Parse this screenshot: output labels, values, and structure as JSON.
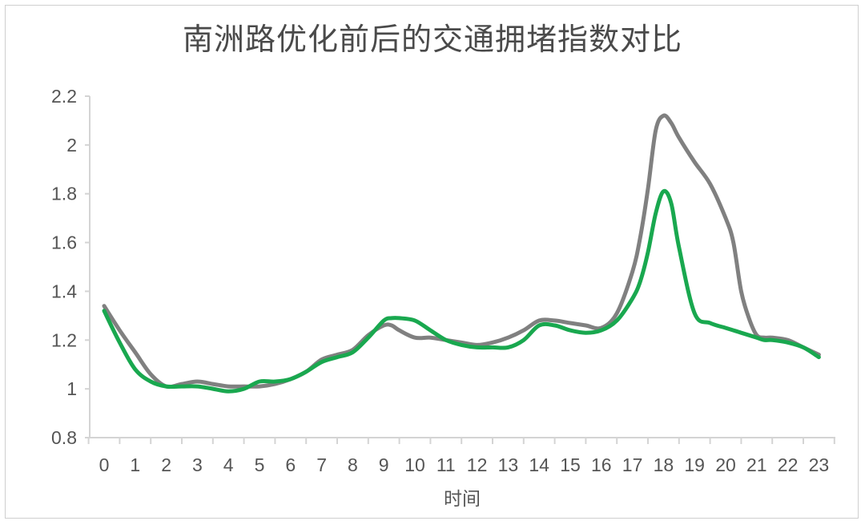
{
  "chart_data": {
    "type": "line",
    "title": "南洲路优化前后的交通拥堵指数对比",
    "xlabel": "时间",
    "ylabel": "",
    "ylim": [
      0.8,
      2.2
    ],
    "yticks": [
      "0.8",
      "1",
      "1.2",
      "1.4",
      "1.6",
      "1.8",
      "2",
      "2.2"
    ],
    "xticks": [
      "0",
      "1",
      "2",
      "3",
      "4",
      "5",
      "6",
      "7",
      "8",
      "9",
      "10",
      "11",
      "12",
      "13",
      "14",
      "15",
      "16",
      "17",
      "18",
      "19",
      "20",
      "21",
      "22",
      "23"
    ],
    "grid": false,
    "legend": "none",
    "series": [
      {
        "color": "#808080",
        "x": [
          0,
          0.5,
          1,
          1.5,
          2,
          2.5,
          3,
          3.5,
          4,
          4.5,
          5,
          5.5,
          6,
          6.5,
          7,
          7.5,
          8,
          8.5,
          9,
          9.25,
          9.5,
          10,
          10.5,
          11,
          11.5,
          12,
          12.5,
          13,
          13.5,
          14,
          14.5,
          15,
          15.5,
          16,
          16.5,
          17,
          17.25,
          17.5,
          17.75,
          18,
          18.25,
          18.5,
          19,
          19.5,
          20,
          20.25,
          20.5,
          20.75,
          21,
          21.25,
          21.5,
          22,
          22.5,
          23
        ],
        "y": [
          1.34,
          1.24,
          1.15,
          1.06,
          1.01,
          1.02,
          1.03,
          1.02,
          1.01,
          1.01,
          1.01,
          1.02,
          1.04,
          1.07,
          1.12,
          1.14,
          1.16,
          1.22,
          1.26,
          1.26,
          1.24,
          1.21,
          1.21,
          1.2,
          1.19,
          1.18,
          1.19,
          1.21,
          1.24,
          1.28,
          1.28,
          1.27,
          1.26,
          1.25,
          1.31,
          1.48,
          1.62,
          1.82,
          2.06,
          2.12,
          2.09,
          2.03,
          1.93,
          1.84,
          1.7,
          1.6,
          1.4,
          1.29,
          1.22,
          1.21,
          1.21,
          1.2,
          1.17,
          1.14
        ]
      },
      {
        "color": "#19a84f",
        "x": [
          0,
          0.5,
          1,
          1.5,
          2,
          2.5,
          3,
          3.5,
          4,
          4.5,
          5,
          5.5,
          6,
          6.5,
          7,
          7.5,
          8,
          8.5,
          9,
          9.25,
          9.5,
          10,
          10.5,
          11,
          11.5,
          12,
          12.5,
          13,
          13.5,
          14,
          14.5,
          15,
          15.5,
          16,
          16.5,
          17,
          17.25,
          17.5,
          17.75,
          18,
          18.25,
          18.5,
          19,
          19.5,
          20,
          20.25,
          20.5,
          20.75,
          21,
          21.25,
          21.5,
          22,
          22.5,
          23
        ],
        "y": [
          1.32,
          1.19,
          1.08,
          1.03,
          1.01,
          1.01,
          1.01,
          1.0,
          0.99,
          1.0,
          1.03,
          1.03,
          1.04,
          1.07,
          1.11,
          1.13,
          1.15,
          1.21,
          1.28,
          1.29,
          1.29,
          1.28,
          1.24,
          1.2,
          1.18,
          1.17,
          1.17,
          1.17,
          1.2,
          1.26,
          1.26,
          1.24,
          1.23,
          1.24,
          1.28,
          1.37,
          1.44,
          1.56,
          1.72,
          1.81,
          1.76,
          1.58,
          1.31,
          1.27,
          1.25,
          1.24,
          1.23,
          1.22,
          1.21,
          1.2,
          1.2,
          1.19,
          1.17,
          1.13
        ]
      }
    ]
  }
}
